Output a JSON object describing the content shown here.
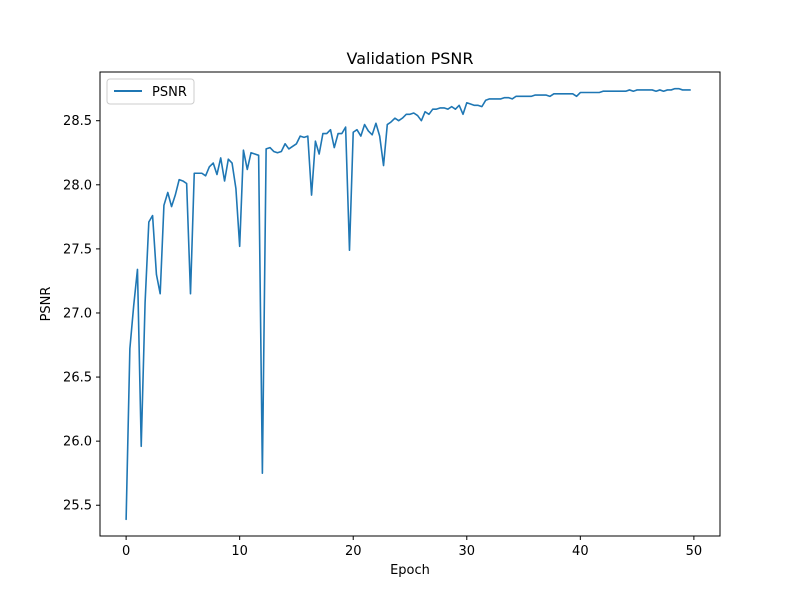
{
  "chart_data": {
    "type": "line",
    "title": "Validation PSNR",
    "xlabel": "Epoch",
    "ylabel": "PSNR",
    "xlim": [
      -2.3,
      52.3
    ],
    "ylim": [
      25.26,
      28.88
    ],
    "xticks": [
      0,
      10,
      20,
      30,
      40,
      50
    ],
    "yticks": [
      25.5,
      26.0,
      26.5,
      27.0,
      27.5,
      28.0,
      28.5
    ],
    "ytick_labels": [
      "25.5",
      "26.0",
      "26.5",
      "27.0",
      "27.5",
      "28.0",
      "28.5"
    ],
    "grid": false,
    "legend": {
      "position": "top-left"
    },
    "series": [
      {
        "name": "PSNR",
        "color": "#1f77b4",
        "x": [
          0.0,
          0.33,
          0.67,
          1.0,
          1.33,
          1.67,
          2.0,
          2.33,
          2.67,
          3.0,
          3.33,
          3.67,
          4.0,
          4.33,
          4.67,
          5.0,
          5.33,
          5.67,
          6.0,
          6.33,
          6.67,
          7.0,
          7.33,
          7.67,
          8.0,
          8.33,
          8.67,
          9.0,
          9.33,
          9.67,
          10.0,
          10.33,
          10.67,
          11.0,
          11.33,
          11.67,
          12.0,
          12.33,
          12.67,
          13.0,
          13.33,
          13.67,
          14.0,
          14.33,
          14.67,
          15.0,
          15.33,
          15.67,
          16.0,
          16.33,
          16.67,
          17.0,
          17.33,
          17.67,
          18.0,
          18.33,
          18.67,
          19.0,
          19.33,
          19.67,
          20.0,
          20.33,
          20.67,
          21.0,
          21.33,
          21.67,
          22.0,
          22.33,
          22.67,
          23.0,
          23.33,
          23.67,
          24.0,
          24.33,
          24.67,
          25.0,
          25.33,
          25.67,
          26.0,
          26.33,
          26.67,
          27.0,
          27.33,
          27.67,
          28.0,
          28.33,
          28.67,
          29.0,
          29.33,
          29.67,
          30.0,
          30.33,
          30.67,
          31.0,
          31.33,
          31.67,
          32.0,
          32.33,
          32.67,
          33.0,
          33.33,
          33.67,
          34.0,
          34.33,
          34.67,
          35.0,
          35.33,
          35.67,
          36.0,
          36.33,
          36.67,
          37.0,
          37.33,
          37.67,
          38.0,
          38.33,
          38.67,
          39.0,
          39.33,
          39.67,
          40.0,
          40.33,
          40.67,
          41.0,
          41.33,
          41.67,
          42.0,
          42.33,
          42.67,
          43.0,
          43.33,
          43.67,
          44.0,
          44.33,
          44.67,
          45.0,
          45.33,
          45.67,
          46.0,
          46.33,
          46.67,
          47.0,
          47.33,
          47.67,
          48.0,
          48.33,
          48.67,
          49.0,
          49.33,
          49.67
        ],
        "y": [
          25.39,
          26.72,
          27.06,
          27.34,
          25.96,
          27.08,
          27.71,
          27.76,
          27.3,
          27.15,
          27.84,
          27.94,
          27.83,
          27.92,
          28.04,
          28.03,
          28.01,
          27.15,
          28.09,
          28.09,
          28.09,
          28.07,
          28.14,
          28.17,
          28.08,
          28.21,
          28.03,
          28.2,
          28.17,
          27.97,
          27.52,
          28.27,
          28.12,
          28.25,
          28.24,
          28.23,
          25.75,
          28.28,
          28.29,
          28.26,
          28.25,
          28.26,
          28.32,
          28.28,
          28.3,
          28.32,
          28.38,
          28.37,
          28.38,
          27.92,
          28.34,
          28.24,
          28.4,
          28.4,
          28.43,
          28.29,
          28.4,
          28.4,
          28.45,
          27.49,
          28.41,
          28.43,
          28.38,
          28.47,
          28.42,
          28.39,
          28.48,
          28.38,
          28.15,
          28.47,
          28.49,
          28.52,
          28.5,
          28.52,
          28.55,
          28.55,
          28.56,
          28.54,
          28.5,
          28.57,
          28.55,
          28.59,
          28.59,
          28.6,
          28.6,
          28.59,
          28.61,
          28.59,
          28.62,
          28.55,
          28.64,
          28.63,
          28.62,
          28.62,
          28.61,
          28.66,
          28.67,
          28.67,
          28.67,
          28.67,
          28.68,
          28.68,
          28.67,
          28.69,
          28.69,
          28.69,
          28.69,
          28.69,
          28.7,
          28.7,
          28.7,
          28.7,
          28.69,
          28.71,
          28.71,
          28.71,
          28.71,
          28.71,
          28.71,
          28.69,
          28.72,
          28.72,
          28.72,
          28.72,
          28.72,
          28.72,
          28.73,
          28.73,
          28.73,
          28.73,
          28.73,
          28.73,
          28.73,
          28.74,
          28.73,
          28.74,
          28.74,
          28.74,
          28.74,
          28.74,
          28.73,
          28.74,
          28.73,
          28.74,
          28.74,
          28.75,
          28.75,
          28.74,
          28.74,
          28.74
        ]
      }
    ]
  }
}
